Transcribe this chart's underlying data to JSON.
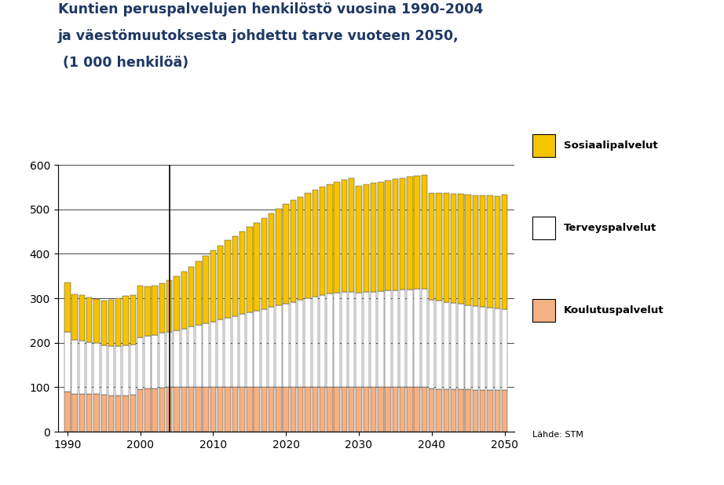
{
  "title_line1": "Kuntien peruspalvelujen henkilöstö vuosina 1990-2004",
  "title_line2": "ja väestömuutoksesta johdettu tarve vuoteen 2050,",
  "title_line3": " (1 000 henkilöä)",
  "title_color": "#1F3864",
  "source_text": "Lähde: STM",
  "legend_labels": [
    "Sosiaalipalvelut",
    "Terveyspalvelut",
    "Koulutuspalvelut"
  ],
  "colors": {
    "sosiaali": "#F5C400",
    "terveys": "#FFFFFF",
    "koulutus": "#F4B183"
  },
  "bar_edge_color": "#444444",
  "separator_year": 2004,
  "years": [
    1990,
    1991,
    1992,
    1993,
    1994,
    1995,
    1996,
    1997,
    1998,
    1999,
    2000,
    2001,
    2002,
    2003,
    2004,
    2005,
    2006,
    2007,
    2008,
    2009,
    2010,
    2011,
    2012,
    2013,
    2014,
    2015,
    2016,
    2017,
    2018,
    2019,
    2020,
    2021,
    2022,
    2023,
    2024,
    2025,
    2026,
    2027,
    2028,
    2029,
    2030,
    2031,
    2032,
    2033,
    2034,
    2035,
    2036,
    2037,
    2038,
    2039,
    2040,
    2041,
    2042,
    2043,
    2044,
    2045,
    2046,
    2047,
    2048,
    2049,
    2050
  ],
  "koulutus": [
    90,
    84,
    84,
    84,
    84,
    83,
    82,
    82,
    82,
    83,
    96,
    97,
    98,
    99,
    100,
    100,
    100,
    100,
    100,
    100,
    100,
    100,
    100,
    100,
    100,
    100,
    100,
    100,
    100,
    100,
    100,
    100,
    100,
    100,
    100,
    100,
    100,
    100,
    100,
    100,
    100,
    100,
    100,
    100,
    100,
    100,
    100,
    100,
    100,
    100,
    97,
    96,
    96,
    95,
    95,
    95,
    94,
    94,
    94,
    93,
    93
  ],
  "terveys": [
    135,
    122,
    120,
    118,
    115,
    112,
    110,
    110,
    112,
    113,
    115,
    118,
    120,
    123,
    125,
    128,
    132,
    136,
    140,
    144,
    148,
    152,
    156,
    160,
    164,
    168,
    172,
    176,
    180,
    184,
    188,
    192,
    196,
    200,
    204,
    207,
    210,
    212,
    214,
    215,
    213,
    214,
    215,
    216,
    217,
    218,
    219,
    220,
    221,
    222,
    200,
    198,
    196,
    194,
    192,
    190,
    188,
    186,
    185,
    184,
    183
  ],
  "sosiaali": [
    110,
    103,
    103,
    100,
    100,
    100,
    105,
    108,
    112,
    112,
    117,
    112,
    110,
    112,
    115,
    122,
    128,
    135,
    143,
    152,
    160,
    167,
    174,
    180,
    186,
    192,
    198,
    205,
    211,
    218,
    224,
    228,
    232,
    236,
    240,
    243,
    246,
    249,
    252,
    255,
    240,
    242,
    244,
    246,
    248,
    250,
    252,
    253,
    254,
    255,
    240,
    242,
    244,
    246,
    248,
    249,
    250,
    251,
    252,
    253,
    257
  ]
}
